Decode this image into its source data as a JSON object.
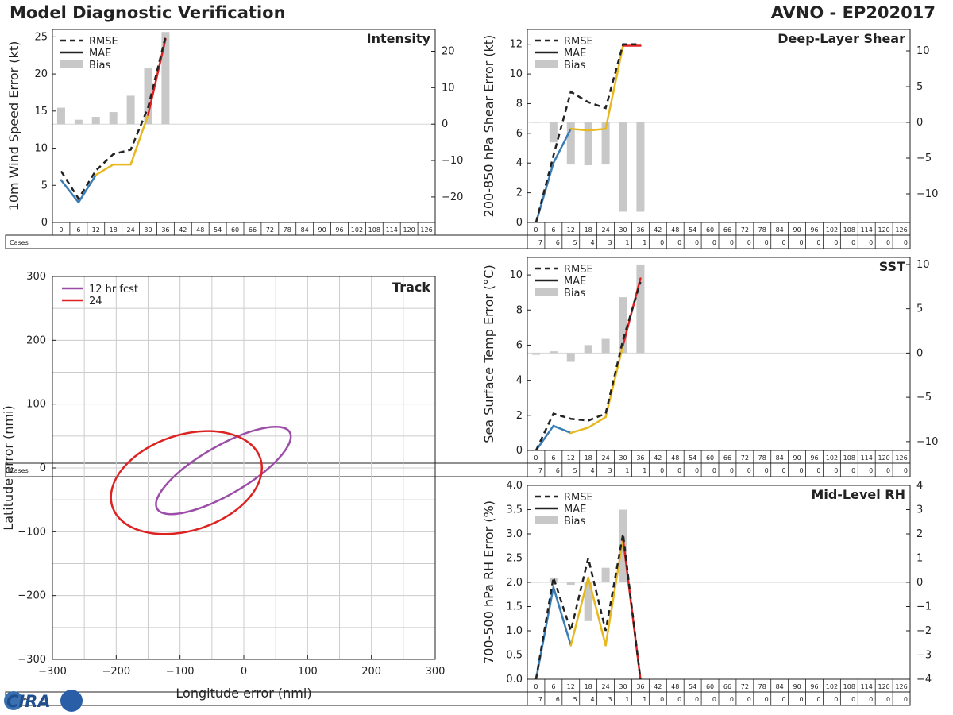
{
  "title_left": "Model Diagnostic Verification",
  "title_right": "AVNO - EP202017",
  "logo_text": "CIRA",
  "colors": {
    "rmse": "#222222",
    "bias": "#c8c8c8",
    "seg1": "#3a7db5",
    "seg2": "#e8b820",
    "seg3": "#e02020",
    "ellipse12": "#9b4da8",
    "ellipse24": "#dd2222",
    "grid": "#cccccc"
  },
  "lead_hours": [
    "0",
    "6",
    "12",
    "18",
    "24",
    "30",
    "36",
    "42",
    "48",
    "54",
    "60",
    "66",
    "72",
    "78",
    "84",
    "90",
    "96",
    "102",
    "108",
    "114",
    "120",
    "126"
  ],
  "cases_label": "Cases",
  "cases": [
    "7",
    "6",
    "5",
    "4",
    "3",
    "1",
    "1",
    "0",
    "0",
    "0",
    "0",
    "0",
    "0",
    "0",
    "0",
    "0",
    "0",
    "0",
    "0",
    "0",
    "0",
    "0"
  ],
  "chart_data": [
    {
      "type": "line",
      "title": "Intensity",
      "ylabel": "10m Wind Speed Error (kt)",
      "ylim": [
        0,
        26
      ],
      "yticks": [
        "0",
        "5",
        "10",
        "15",
        "20",
        "25"
      ],
      "y2lim": [
        -27,
        26
      ],
      "y2ticks": [
        "−20",
        "−10",
        "0",
        "10",
        "20"
      ],
      "legend": [
        "RMSE",
        "MAE",
        "Bias"
      ],
      "x": [
        0,
        6,
        12,
        18,
        24,
        30,
        36
      ],
      "rmse": [
        6.9,
        3.2,
        7.0,
        9.2,
        9.8,
        15.5,
        25.0
      ],
      "mae": [
        5.7,
        2.7,
        6.4,
        7.8,
        7.8,
        14.5,
        24.7
      ],
      "bias": [
        4.5,
        1.2,
        2.0,
        3.3,
        7.8,
        15.3,
        25.3
      ]
    },
    {
      "type": "line",
      "title": "Deep-Layer Shear",
      "ylabel": "200-850 hPa Shear Error (kt)",
      "ylim": [
        0,
        13
      ],
      "yticks": [
        "0",
        "2",
        "4",
        "6",
        "8",
        "10",
        "12"
      ],
      "y2lim": [
        -14,
        13
      ],
      "y2ticks": [
        "−10",
        "−5",
        "0",
        "5",
        "10"
      ],
      "legend": [
        "RMSE",
        "MAE",
        "Bias"
      ],
      "x": [
        0,
        6,
        12,
        18,
        24,
        30,
        36
      ],
      "rmse": [
        0,
        4.5,
        8.8,
        8.1,
        7.7,
        12.0,
        12.0
      ],
      "mae": [
        0,
        4.0,
        6.3,
        6.2,
        6.3,
        11.9,
        11.9
      ],
      "bias": [
        0,
        -2.8,
        -5.9,
        -6.0,
        -5.9,
        -12.5,
        -12.5
      ]
    },
    {
      "type": "line",
      "title": "SST",
      "ylabel": "Sea Surface Temp Error (°C)",
      "ylim": [
        0,
        11
      ],
      "yticks": [
        "0",
        "2",
        "4",
        "6",
        "8",
        "10"
      ],
      "y2lim": [
        -11,
        10.8
      ],
      "y2ticks": [
        "−10",
        "−5",
        "0",
        "5",
        "10"
      ],
      "legend": [
        "RMSE",
        "MAE",
        "Bias"
      ],
      "x": [
        0,
        6,
        12,
        18,
        24,
        30,
        36
      ],
      "rmse": [
        0,
        2.1,
        1.8,
        1.7,
        2.1,
        6.3,
        9.6
      ],
      "mae": [
        0,
        1.4,
        1.0,
        1.3,
        1.9,
        6.0,
        9.8
      ],
      "bias": [
        -0.2,
        0.2,
        -1.0,
        0.9,
        1.6,
        6.3,
        10.0
      ]
    },
    {
      "type": "line",
      "title": "Mid-Level RH",
      "ylabel": "700-500 hPa RH Error (%)",
      "ylim": [
        0,
        4
      ],
      "yticks": [
        "0.0",
        "0.5",
        "1.0",
        "1.5",
        "2.0",
        "2.5",
        "3.0",
        "3.5",
        "4.0"
      ],
      "y2lim": [
        -4,
        4
      ],
      "y2ticks": [
        "−4",
        "−3",
        "−2",
        "−1",
        "0",
        "1",
        "2",
        "3",
        "4"
      ],
      "legend": [
        "RMSE",
        "MAE",
        "Bias"
      ],
      "x": [
        0,
        6,
        12,
        18,
        24,
        30,
        36
      ],
      "rmse": [
        0,
        2.1,
        1.0,
        2.5,
        1.0,
        3.0,
        0
      ],
      "mae": [
        0,
        1.9,
        0.7,
        2.1,
        0.7,
        2.9,
        0
      ],
      "bias": [
        0,
        0.2,
        -0.1,
        -1.6,
        0.6,
        3.0,
        0
      ]
    },
    {
      "type": "scatter",
      "title": "Track",
      "xlabel": "Longitude error (nmi)",
      "ylabel": "Latitude error (nmi)",
      "xlim": [
        -300,
        300
      ],
      "ylim": [
        -300,
        300
      ],
      "xticks": [
        "−300",
        "−200",
        "−100",
        "0",
        "100",
        "200",
        "300"
      ],
      "yticks": [
        "−300",
        "−200",
        "−100",
        "0",
        "100",
        "200",
        "300"
      ],
      "legend": [
        "12 hr fcst",
        "24"
      ],
      "ellipses": [
        {
          "name": "12 hr fcst",
          "cx": -32,
          "cy": -4,
          "rx": 120,
          "ry": 38,
          "angle_deg": 30
        },
        {
          "name": "24",
          "cx": -90,
          "cy": -23,
          "rx": 122,
          "ry": 75,
          "angle_deg": 18
        }
      ]
    }
  ]
}
